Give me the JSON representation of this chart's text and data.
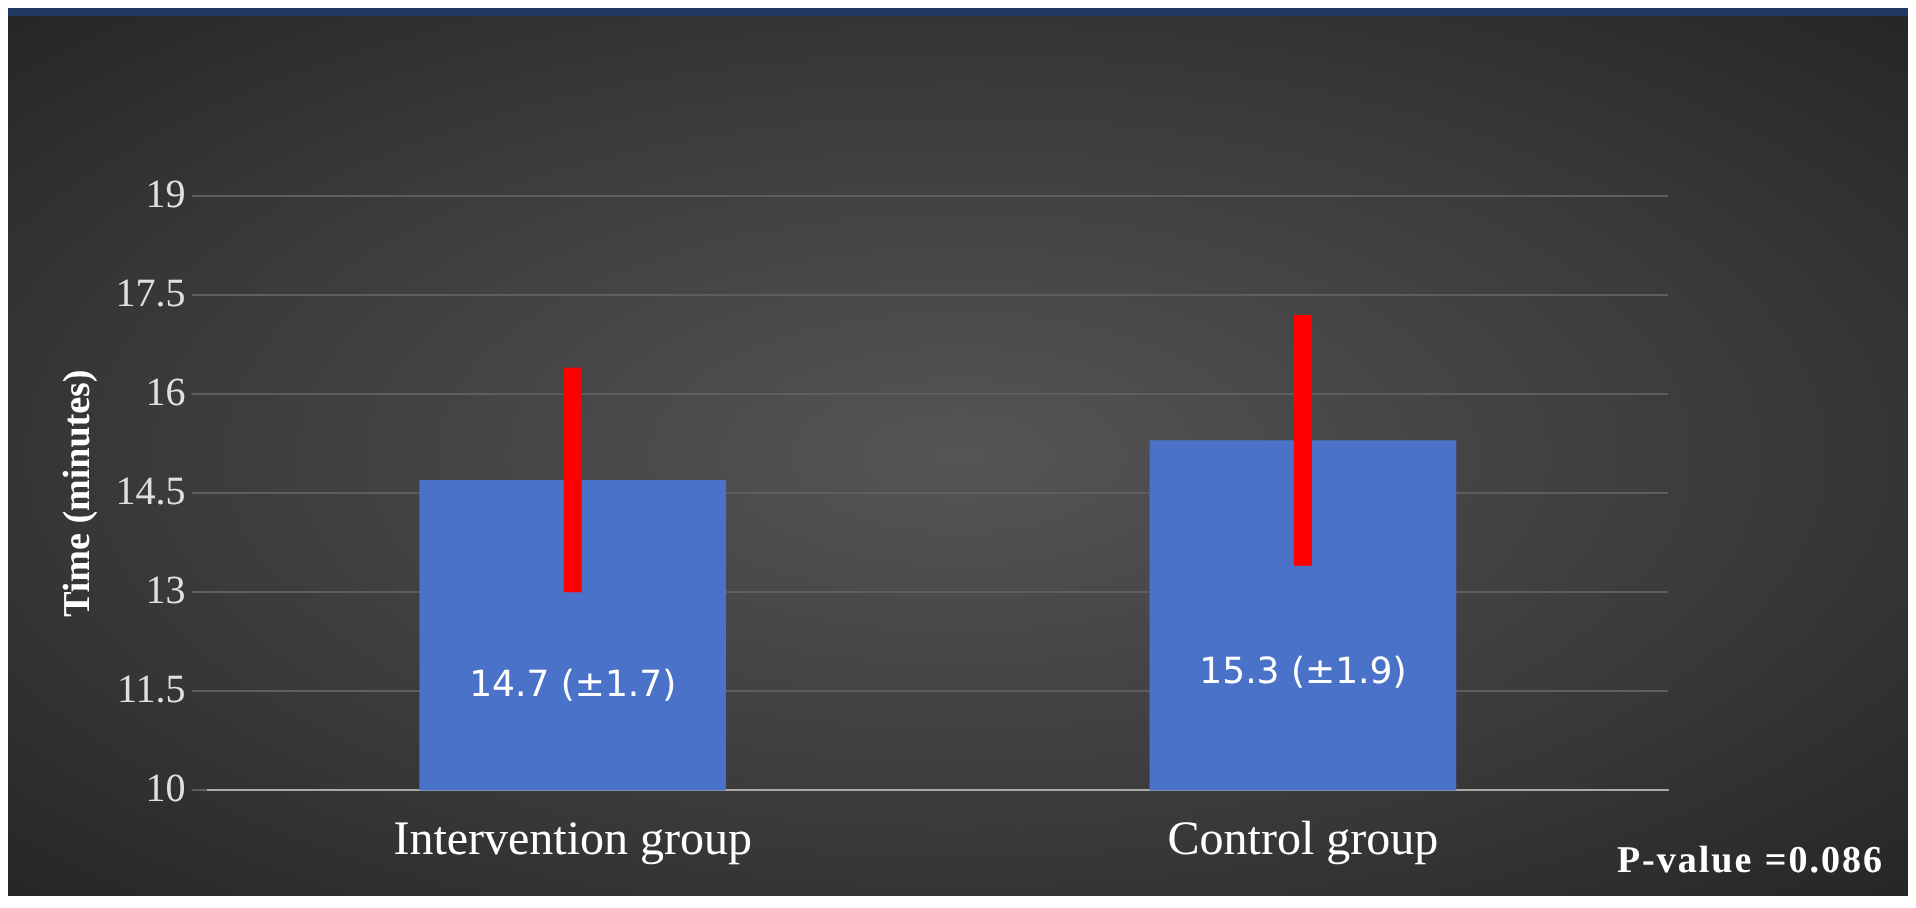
{
  "chart_data": {
    "type": "bar",
    "ylabel": "Time (minutes)",
    "categories": [
      "Intervention group",
      "Control group"
    ],
    "values": [
      14.7,
      15.3
    ],
    "color": "#4a72c8",
    "errors": [
      1.7,
      1.9
    ],
    "value_labels": [
      "14.7 (±1.7)",
      "15.3 (±1.9)"
    ],
    "ylim": [
      10,
      19
    ],
    "yticks": [
      10,
      11.5,
      13,
      14.5,
      16,
      17.5,
      19
    ],
    "grid": "y",
    "annotations": [
      "P-value =0.086"
    ]
  }
}
